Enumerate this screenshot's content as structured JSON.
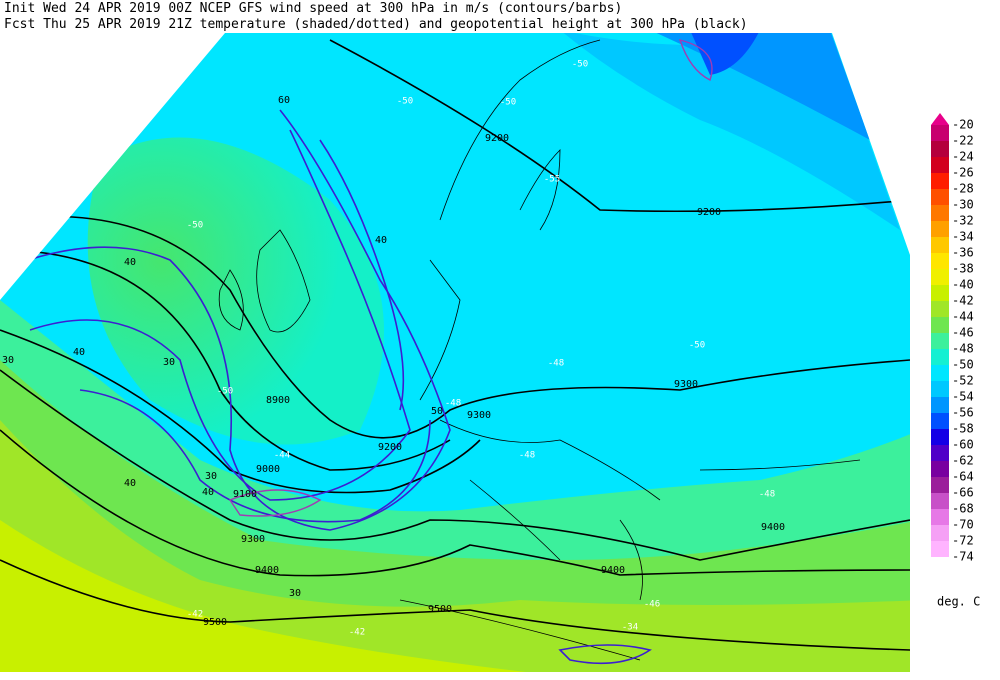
{
  "header": {
    "line1": "Init  Wed 24 APR 2019 00Z  NCEP GFS wind speed at 300 hPa in m/s (contours/barbs)",
    "line2": "Fcst Thu 25 APR 2019 21Z  temperature (shaded/dotted) and geopotential height at 300 hPa (black)"
  },
  "legend": {
    "labels": [
      "-20",
      "-22",
      "-24",
      "-26",
      "-28",
      "-30",
      "-32",
      "-34",
      "-36",
      "-38",
      "-40",
      "-42",
      "-44",
      "-46",
      "-48",
      "-50",
      "-52",
      "-54",
      "-56",
      "-58",
      "-60",
      "-62",
      "-64",
      "-66",
      "-68",
      "-70",
      "-72",
      "-74"
    ],
    "colors": [
      "#e8008a",
      "#c8006e",
      "#b4003c",
      "#d2001e",
      "#ff1e00",
      "#ff5000",
      "#ff7800",
      "#ffa000",
      "#ffc800",
      "#ffe600",
      "#f0f000",
      "#c8f000",
      "#a0e628",
      "#6ee650",
      "#3cf09c",
      "#14f0d2",
      "#00e6ff",
      "#00c8ff",
      "#0096ff",
      "#0050ff",
      "#1400e6",
      "#5000c8",
      "#7800a0",
      "#9b1e9b",
      "#c850c8",
      "#e678e6",
      "#f5a0f5",
      "#ffb4ff"
    ],
    "unit": "deg. C"
  },
  "map": {
    "labels": [
      "9200",
      "9200",
      "9300",
      "9300",
      "8900",
      "9000",
      "9100",
      "9200",
      "9300",
      "9400",
      "9400",
      "9400",
      "9500",
      "9500",
      "30",
      "30",
      "30",
      "30",
      "40",
      "40",
      "40",
      "40",
      "40",
      "50",
      "60",
      "-50",
      "-50",
      "-50",
      "-50",
      "-50",
      "-48",
      "-48",
      "-48",
      "-48",
      "-46",
      "-44",
      "-42",
      "-42",
      "-55",
      "-50",
      "-34"
    ]
  }
}
